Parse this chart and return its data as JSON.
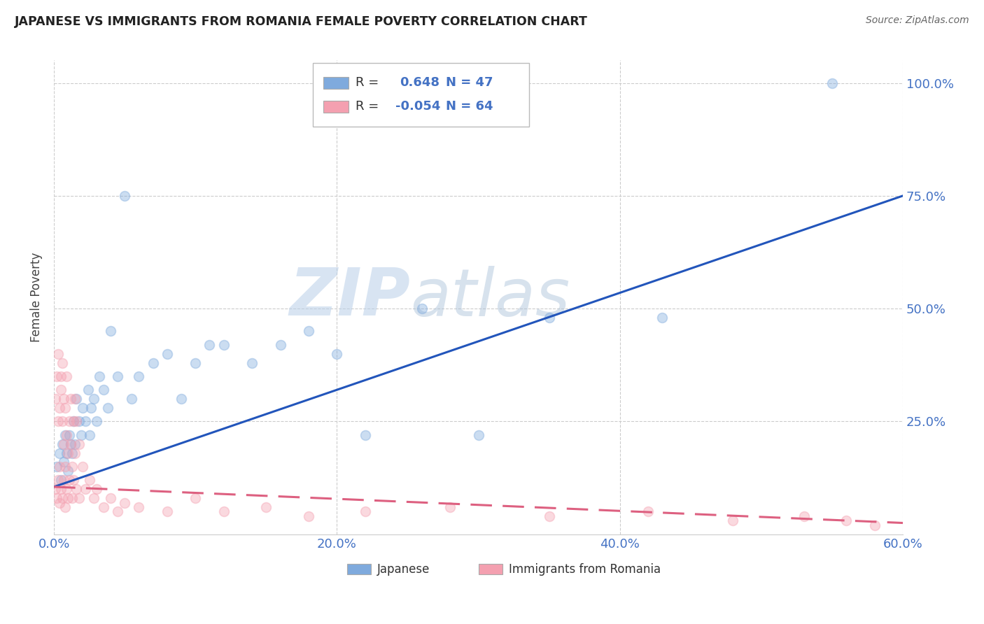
{
  "title": "JAPANESE VS IMMIGRANTS FROM ROMANIA FEMALE POVERTY CORRELATION CHART",
  "source": "Source: ZipAtlas.com",
  "tick_color": "#4472C4",
  "ylabel": "Female Poverty",
  "xlim": [
    0.0,
    0.6
  ],
  "ylim": [
    0.0,
    1.05
  ],
  "xtick_labels": [
    "0.0%",
    "20.0%",
    "40.0%",
    "60.0%"
  ],
  "xtick_vals": [
    0.0,
    0.2,
    0.4,
    0.6
  ],
  "ytick_labels": [
    "25.0%",
    "50.0%",
    "75.0%",
    "100.0%"
  ],
  "ytick_vals": [
    0.25,
    0.5,
    0.75,
    1.0
  ],
  "japanese_color": "#7faadd",
  "romanian_color": "#f4a0b0",
  "japanese_line_color": "#2255bb",
  "romanian_line_color": "#dd6080",
  "japanese_R": "0.648",
  "japanese_N": "47",
  "romanian_R": "-0.054",
  "romanian_N": "64",
  "legend_label_japanese": "Japanese",
  "legend_label_romanian": "Immigrants from Romania",
  "watermark_zip": "ZIP",
  "watermark_atlas": "atlas",
  "japanese_x": [
    0.002,
    0.004,
    0.005,
    0.006,
    0.007,
    0.008,
    0.009,
    0.01,
    0.011,
    0.012,
    0.013,
    0.014,
    0.015,
    0.016,
    0.018,
    0.019,
    0.02,
    0.022,
    0.024,
    0.025,
    0.026,
    0.028,
    0.03,
    0.032,
    0.035,
    0.038,
    0.04,
    0.045,
    0.05,
    0.055,
    0.06,
    0.07,
    0.08,
    0.09,
    0.1,
    0.11,
    0.12,
    0.14,
    0.16,
    0.18,
    0.2,
    0.22,
    0.26,
    0.3,
    0.35,
    0.43,
    0.55
  ],
  "japanese_y": [
    0.15,
    0.18,
    0.12,
    0.2,
    0.16,
    0.22,
    0.18,
    0.14,
    0.22,
    0.2,
    0.18,
    0.25,
    0.2,
    0.3,
    0.25,
    0.22,
    0.28,
    0.25,
    0.32,
    0.22,
    0.28,
    0.3,
    0.25,
    0.35,
    0.32,
    0.28,
    0.45,
    0.35,
    0.75,
    0.3,
    0.35,
    0.38,
    0.4,
    0.3,
    0.38,
    0.42,
    0.42,
    0.38,
    0.42,
    0.45,
    0.4,
    0.22,
    0.5,
    0.22,
    0.48,
    0.48,
    1.0
  ],
  "romanian_x": [
    0.001,
    0.001,
    0.002,
    0.002,
    0.003,
    0.003,
    0.003,
    0.004,
    0.004,
    0.004,
    0.005,
    0.005,
    0.005,
    0.006,
    0.006,
    0.006,
    0.007,
    0.007,
    0.007,
    0.008,
    0.008,
    0.008,
    0.009,
    0.009,
    0.009,
    0.01,
    0.01,
    0.011,
    0.011,
    0.012,
    0.012,
    0.013,
    0.013,
    0.014,
    0.014,
    0.015,
    0.015,
    0.016,
    0.016,
    0.018,
    0.018,
    0.02,
    0.022,
    0.025,
    0.028,
    0.03,
    0.035,
    0.04,
    0.045,
    0.05,
    0.06,
    0.08,
    0.1,
    0.12,
    0.15,
    0.18,
    0.22,
    0.28,
    0.35,
    0.42,
    0.48,
    0.53,
    0.56,
    0.58
  ],
  "romanian_y": [
    0.1,
    0.3,
    0.08,
    0.35,
    0.12,
    0.25,
    0.4,
    0.07,
    0.28,
    0.15,
    0.35,
    0.1,
    0.32,
    0.08,
    0.25,
    0.38,
    0.12,
    0.3,
    0.2,
    0.06,
    0.28,
    0.15,
    0.22,
    0.1,
    0.35,
    0.18,
    0.08,
    0.25,
    0.12,
    0.2,
    0.3,
    0.15,
    0.08,
    0.25,
    0.12,
    0.18,
    0.3,
    0.1,
    0.25,
    0.08,
    0.2,
    0.15,
    0.1,
    0.12,
    0.08,
    0.1,
    0.06,
    0.08,
    0.05,
    0.07,
    0.06,
    0.05,
    0.08,
    0.05,
    0.06,
    0.04,
    0.05,
    0.06,
    0.04,
    0.05,
    0.03,
    0.04,
    0.03,
    0.02
  ],
  "background_color": "#ffffff",
  "grid_color": "#cccccc",
  "marker_size": 100,
  "marker_alpha": 0.4,
  "line_width": 2.2,
  "jap_line_x0": 0.0,
  "jap_line_y0": 0.105,
  "jap_line_x1": 0.6,
  "jap_line_y1": 0.75,
  "rom_line_x0": 0.0,
  "rom_line_y0": 0.105,
  "rom_line_x1": 0.6,
  "rom_line_y1": 0.025
}
